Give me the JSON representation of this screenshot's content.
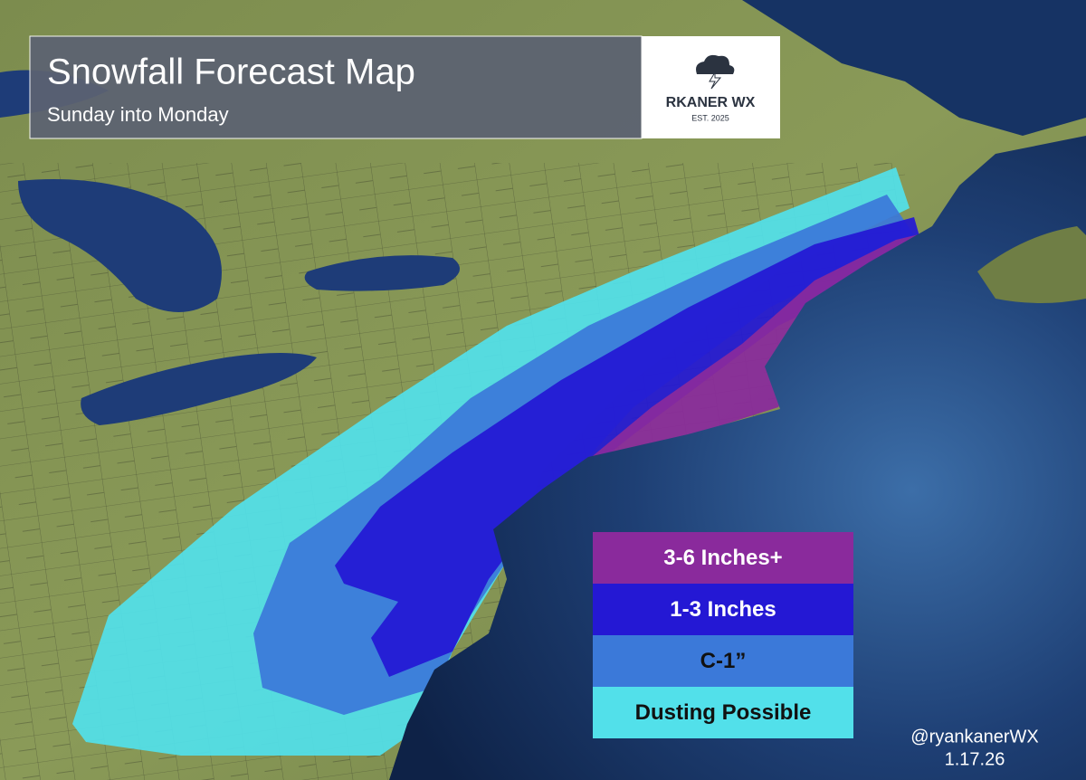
{
  "header": {
    "title": "Snowfall Forecast Map",
    "subtitle": "Sunday into Monday"
  },
  "logo": {
    "name": "RKANER WX",
    "established": "EST. 2025"
  },
  "legend": {
    "items": [
      {
        "label": "3-6 Inches+",
        "color": "#8a2a9c"
      },
      {
        "label": "1-3 Inches",
        "color": "#2418d4"
      },
      {
        "label": "C-1”",
        "color": "#3b79d9"
      },
      {
        "label": "Dusting Possible",
        "color": "#52e0ea"
      }
    ]
  },
  "footer": {
    "handle": "@ryankanerWX",
    "date": "1.17.26"
  }
}
